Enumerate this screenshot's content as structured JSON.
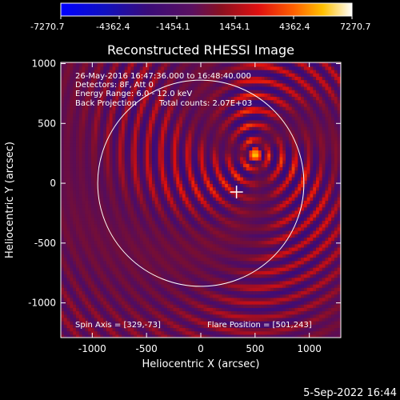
{
  "colorbar": {
    "labels": [
      "-7270.7",
      "-4362.4",
      "-1454.1",
      "1454.1",
      "4362.4",
      "7270.7"
    ],
    "min": -7270.7,
    "max": 7270.7
  },
  "title": "Reconstructed RHESSI Image",
  "info": {
    "line1": "26-May-2016 16:47:36.000 to 16:48:40.000",
    "line2": "Detectors: 8F, Att 0",
    "line3": "Energy Range: 6.0 - 12.0 keV",
    "line4a": "Back Projection",
    "line4b": "Total counts: 2.07E+03"
  },
  "footer": {
    "spin_axis": "Spin Axis = [329,-73]",
    "flare_position": "Flare Position = [501,243]",
    "timestamp": "5-Sep-2022 16:44"
  },
  "chart_data": {
    "type": "heatmap",
    "title": "Reconstructed RHESSI Image",
    "xlabel": "Heliocentric X (arcsec)",
    "ylabel": "Heliocentric Y (arcsec)",
    "xlim": [
      -1290,
      1290
    ],
    "ylim": [
      -1290,
      1010
    ],
    "x_ticks": [
      -1000,
      -500,
      0,
      500,
      1000
    ],
    "y_ticks": [
      -1000,
      -500,
      0,
      500,
      1000
    ],
    "x_tick_labels": [
      "-1000",
      "-500",
      "0",
      "500",
      "1000"
    ],
    "y_tick_labels": [
      "-1000",
      "-500",
      "0",
      "500",
      "1000"
    ],
    "source_center": [
      501,
      243
    ],
    "spin_axis": [
      329,
      -73
    ],
    "solar_disk_radius": 950,
    "value_range": [
      -7270.7,
      7270.7
    ],
    "colors": {
      "negative": "#0000ff",
      "mid_low": "#3c0a6e",
      "mid": "#8c1a2a",
      "positive": "#ff3000",
      "peak": "#ffffff"
    }
  }
}
